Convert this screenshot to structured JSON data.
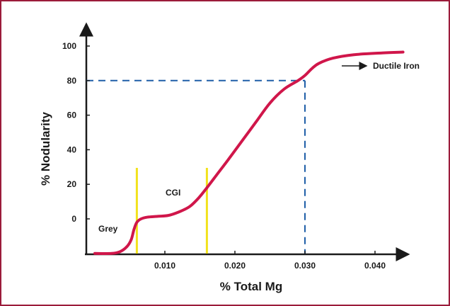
{
  "chart_data": {
    "type": "line",
    "title": "",
    "xlabel": "% Total Mg",
    "ylabel": "% Nodularity",
    "xlim": [
      0.0,
      0.045
    ],
    "ylim": [
      -20,
      110
    ],
    "x_ticks": [
      0.01,
      0.02,
      0.03,
      0.04
    ],
    "x_tick_labels": [
      "0.010",
      "0.020",
      "0.030",
      "0.040"
    ],
    "y_ticks": [
      0,
      20,
      40,
      60,
      80,
      100
    ],
    "y_tick_labels": [
      "0",
      "20",
      "40",
      "60",
      "80",
      "100"
    ],
    "grid": false,
    "series": [
      {
        "color": "#d0164a",
        "points": [
          [
            0.0,
            -20
          ],
          [
            0.0024,
            -20
          ],
          [
            0.0036,
            -19
          ],
          [
            0.0046,
            -16
          ],
          [
            0.0052,
            -12
          ],
          [
            0.0056,
            -6
          ],
          [
            0.006,
            -2
          ],
          [
            0.0066,
            0
          ],
          [
            0.0075,
            1
          ],
          [
            0.009,
            1.5
          ],
          [
            0.0105,
            2
          ],
          [
            0.012,
            4
          ],
          [
            0.0135,
            7
          ],
          [
            0.0148,
            12
          ],
          [
            0.016,
            18
          ],
          [
            0.0175,
            26
          ],
          [
            0.019,
            34
          ],
          [
            0.021,
            45
          ],
          [
            0.023,
            56
          ],
          [
            0.025,
            67
          ],
          [
            0.027,
            75
          ],
          [
            0.029,
            80
          ],
          [
            0.03,
            83
          ],
          [
            0.031,
            87
          ],
          [
            0.032,
            90
          ],
          [
            0.034,
            93
          ],
          [
            0.037,
            95
          ],
          [
            0.041,
            96
          ],
          [
            0.044,
            96.5
          ]
        ]
      }
    ],
    "reference_lines": {
      "color": "#1f5fa8",
      "horizontal_y": 80,
      "vertical_x": 0.03
    },
    "region_lines": {
      "color": "#f2e21c",
      "x": [
        0.006,
        0.016
      ]
    },
    "annotations": {
      "grey": "Grey",
      "cgi": "CGI",
      "ductile": "Ductile Iron"
    }
  }
}
